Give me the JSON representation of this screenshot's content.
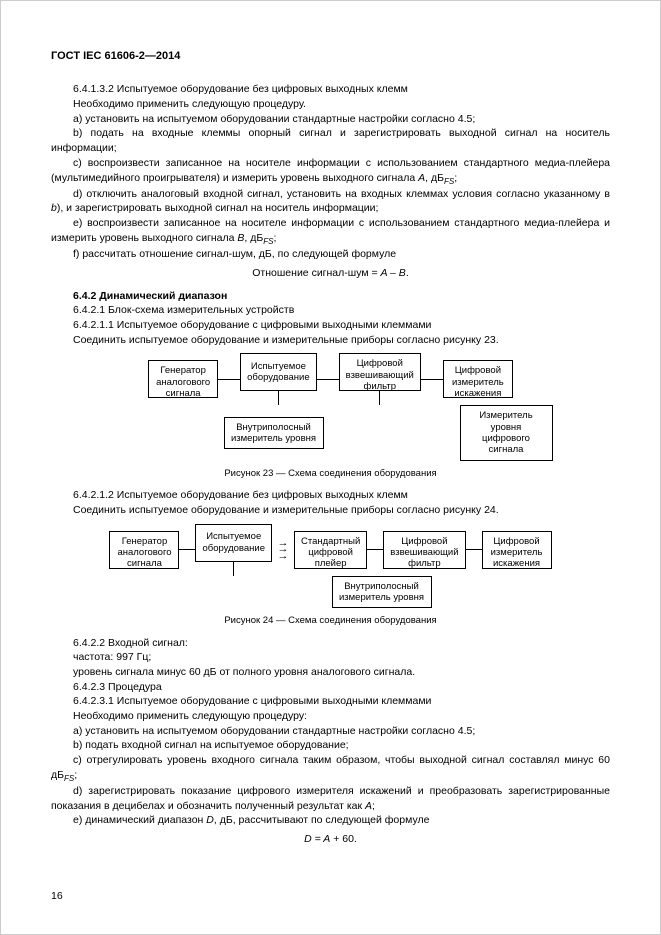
{
  "header": "ГОСТ IEC 61606-2—2014",
  "s64132_title": "6.4.1.3.2 Испытуемое оборудование без цифровых выходных клемм",
  "s64132_intro": "Необходимо применить следующую процедуру.",
  "s64132_a": "a) установить на испытуемом оборудовании стандартные настройки согласно 4.5;",
  "s64132_b": "b) подать на входные клеммы опорный сигнал и зарегистрировать выходной сигнал на носитель информации;",
  "s64132_c_pre": "c) воспроизвести записанное на носителе информации с использованием стандартного медиа-плейера (мультимедийного проигрывателя) и измерить уровень выходного сигнала ",
  "A": "A",
  "dBFS": ", дБ",
  "FS": "FS",
  "semic": ";",
  "s64132_d": "d) отключить аналоговый входной сигнал, установить на входных клеммах условия согласно указанному в ",
  "bref": "b",
  "s64132_d2": "), и зарегистрировать выходной сигнал на носитель информации;",
  "s64132_e_pre": "e) воспроизвести записанное на носителе информации с использованием стандартного медиа-плейера и измерить уровень выходного сигнала ",
  "B": "B",
  "s64132_f": "f) рассчитать отношение сигнал-шум, дБ, по следующей формуле",
  "formula1_a": "Отношение сигнал-шум = ",
  "formula1_b": "A – B",
  "formula1_c": ".",
  "s642": "6.4.2 Динамический диапазон",
  "s6421": "6.4.2.1 Блок-схема измерительных устройств",
  "s64211": "6.4.2.1.1 Испытуемое оборудование с цифровыми выходными клеммами",
  "s64211_txt": "Соединить испытуемое оборудование и измерительные приборы согласно рисунку 23.",
  "d1_b1": "Генератор\nаналогового\nсигнала",
  "d1_b2": "Испытуемое\nоборудование",
  "d1_b3": "Цифровой\nвзвешивающий\nфильтр",
  "d1_b4": "Цифровой\nизмеритель\nискажения",
  "d1_b5": "Внутриполосный\nизмеритель уровня",
  "d1_b6": "Измеритель\nуровня цифрового\nсигнала",
  "cap23": "Рисунок 23 — Схема соединения оборудования",
  "s64212": "6.4.2.1.2  Испытуемое оборудование без цифровых выходных клемм",
  "s64212_txt": "Соединить испытуемое оборудование и измерительные приборы согласно рисунку 24.",
  "d2_b1": "Генератор\nаналогового\nсигнала",
  "d2_b2": "Испытуемое\nоборудование",
  "d2_b3": "Стандартный\nцифровой\nплейер",
  "d2_b4": "Цифровой\nвзвешивающий\nфильтр",
  "d2_b5": "Цифровой\nизмеритель\nискажения",
  "d2_b6": "Внутриполосный\nизмеритель уровня",
  "cap24": "Рисунок 24 — Схема соединения оборудования",
  "s6422": "6.4.2.2 Входной сигнал:",
  "s6422_a": "частота: 997 Гц;",
  "s6422_b": "уровень сигнала минус 60 дБ от полного уровня аналогового сигнала.",
  "s6423": "6.4.2.3 Процедура",
  "s64231": "6.4.2.3.1 Испытуемое оборудование с цифровыми выходными клеммами",
  "s64231_intro": "Необходимо применить следующую процедуру:",
  "s64231_a": "a) установить на испытуемом оборудовании стандартные настройки согласно 4.5;",
  "s64231_b": "b) подать входной сигнал на испытуемое оборудование;",
  "s64231_c_pre": "c) отрегулировать уровень входного сигнала таким образом, чтобы выходной сигнал составлял минус 60 дБ",
  "s64231_d_pre": "d) зарегистрировать показание цифрового измерителя искажений и преобразовать зарегистрированные показания в децибелах и обозначить полученный результат как ",
  "s64231_e_pre": "e) динамический диапазон ",
  "D": "D",
  "s64231_e_post": ", дБ, рассчитывают по следующей формуле",
  "formula2_a": "D = A",
  "formula2_b": " + 60.",
  "pagenum": "16"
}
